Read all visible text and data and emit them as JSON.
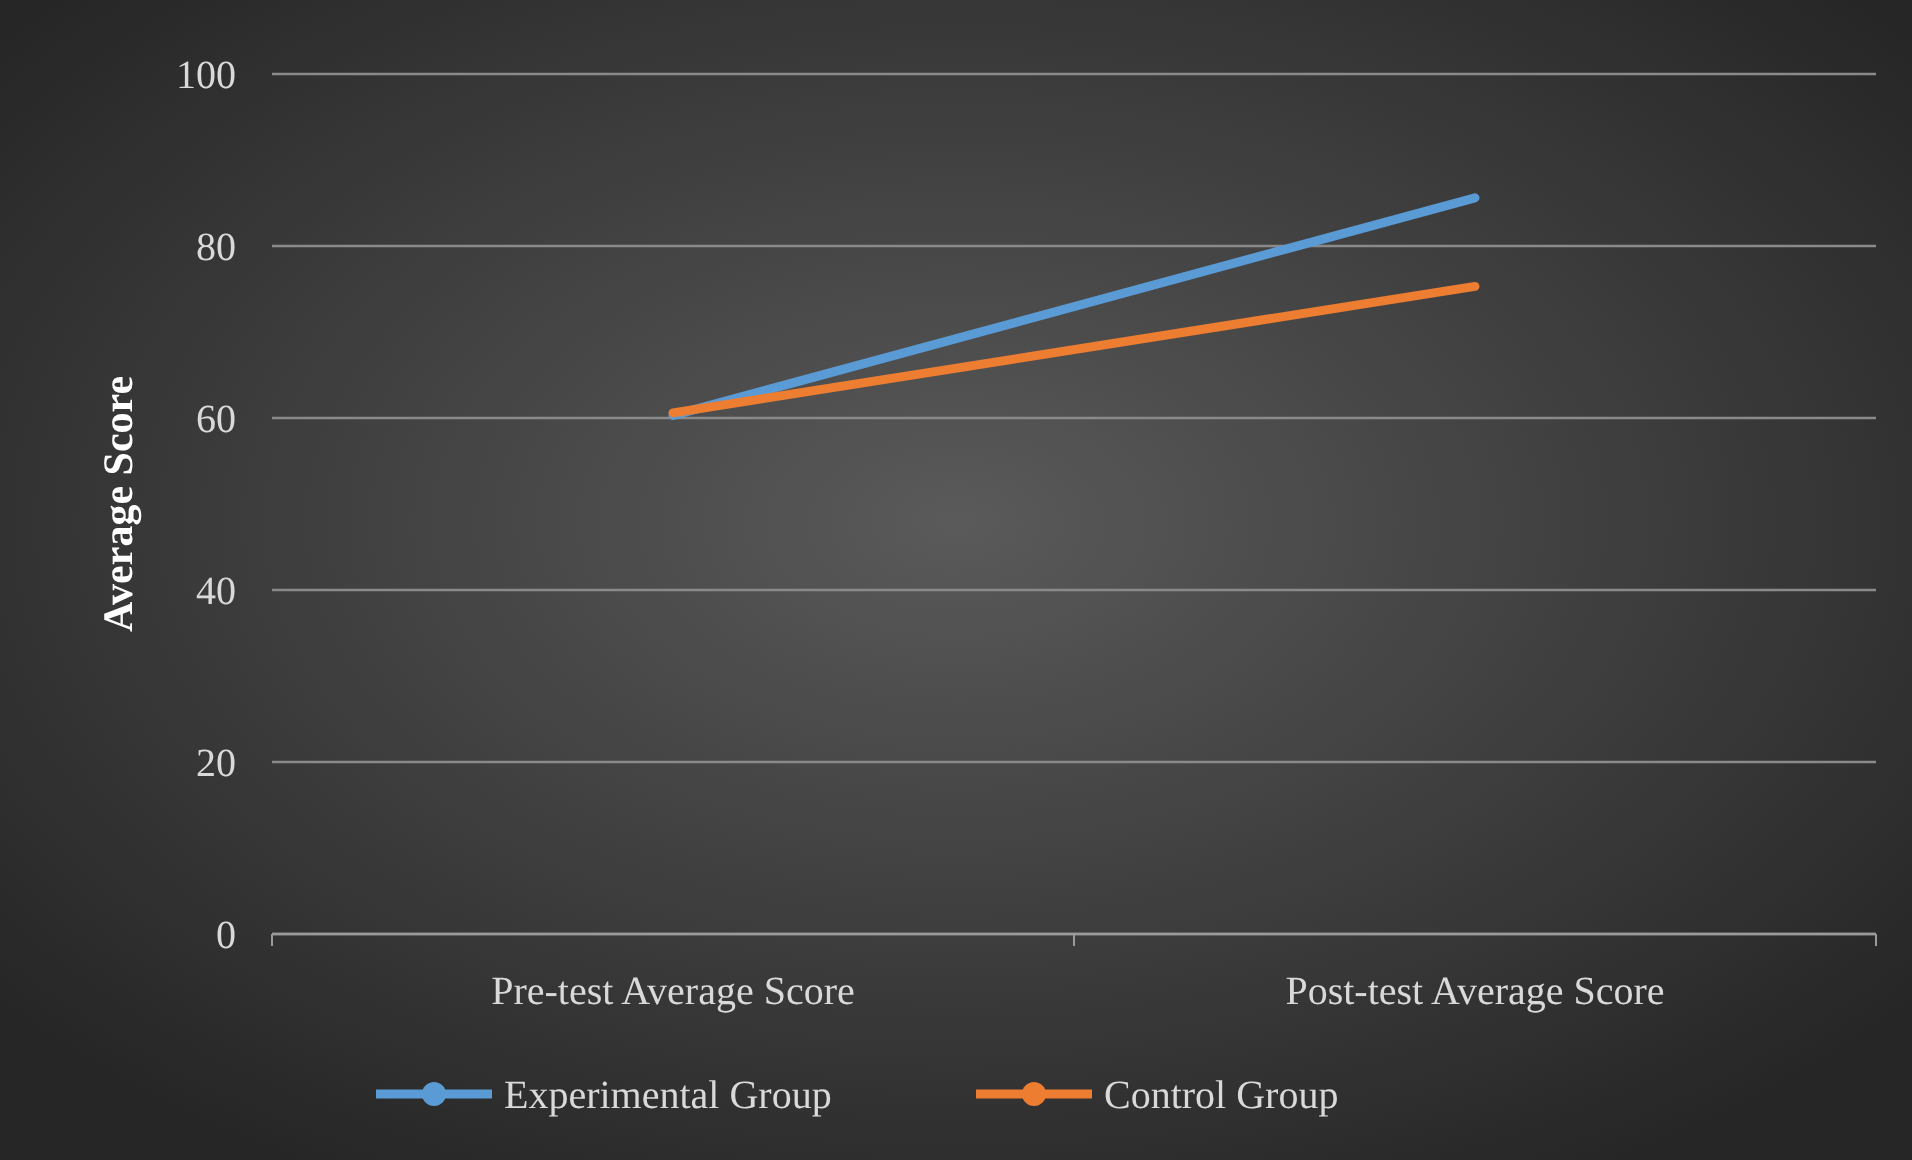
{
  "chart_data": {
    "type": "line",
    "ylabel": "Average Score",
    "categories": [
      "Pre-test Average Score",
      "Post-test Average Score"
    ],
    "series": [
      {
        "name": "Experimental Group",
        "color": "#5b9bd5",
        "values": [
          60.3,
          85.6
        ]
      },
      {
        "name": "Control Group",
        "color": "#ed7d31",
        "values": [
          60.6,
          75.3
        ]
      }
    ],
    "ylim": [
      0,
      100
    ],
    "yticks": [
      0,
      20,
      40,
      60,
      80,
      100
    ],
    "grid": "y",
    "legend": "bottom"
  }
}
